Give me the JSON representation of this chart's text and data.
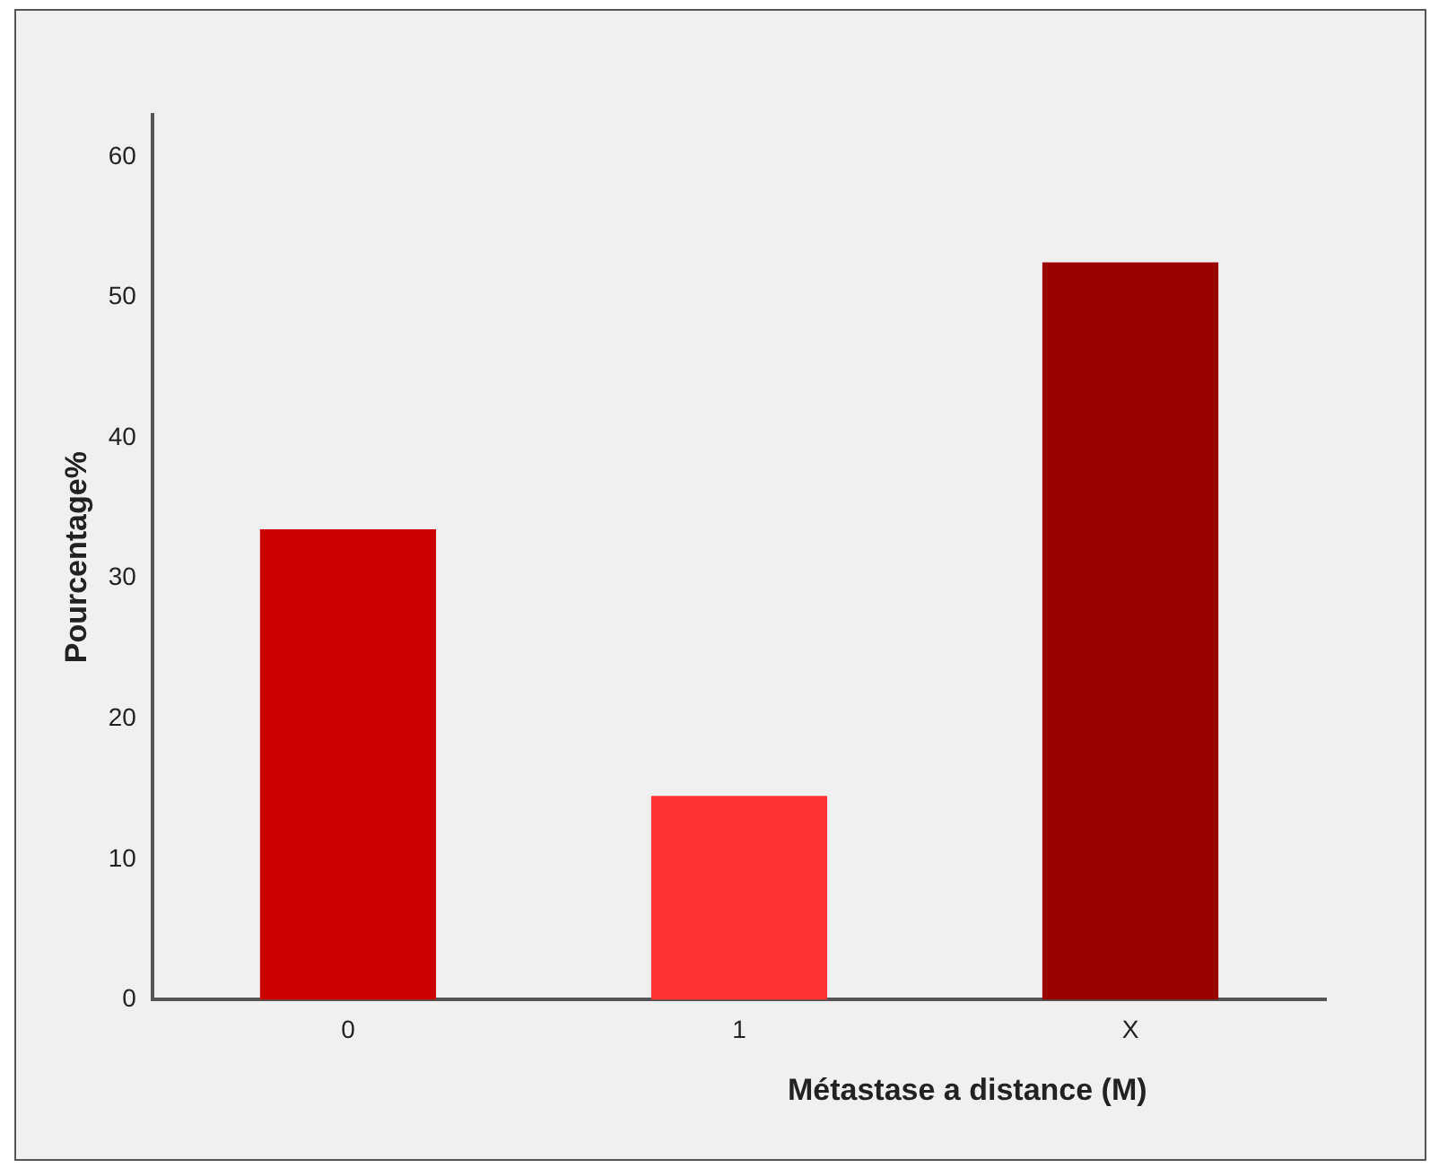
{
  "chart_data": {
    "type": "bar",
    "xlabel": "Métastase a distance (M)",
    "ylabel": "Pourcentage%",
    "categories": [
      "0",
      "1",
      "X"
    ],
    "values": [
      33.5,
      14.5,
      52.5
    ],
    "colors": [
      "#cc0000",
      "#ff3333",
      "#990000"
    ],
    "ylim": [
      0,
      63
    ],
    "yticks": [
      0,
      10,
      20,
      30,
      40,
      50,
      60
    ],
    "grid": false,
    "legend": false
  }
}
